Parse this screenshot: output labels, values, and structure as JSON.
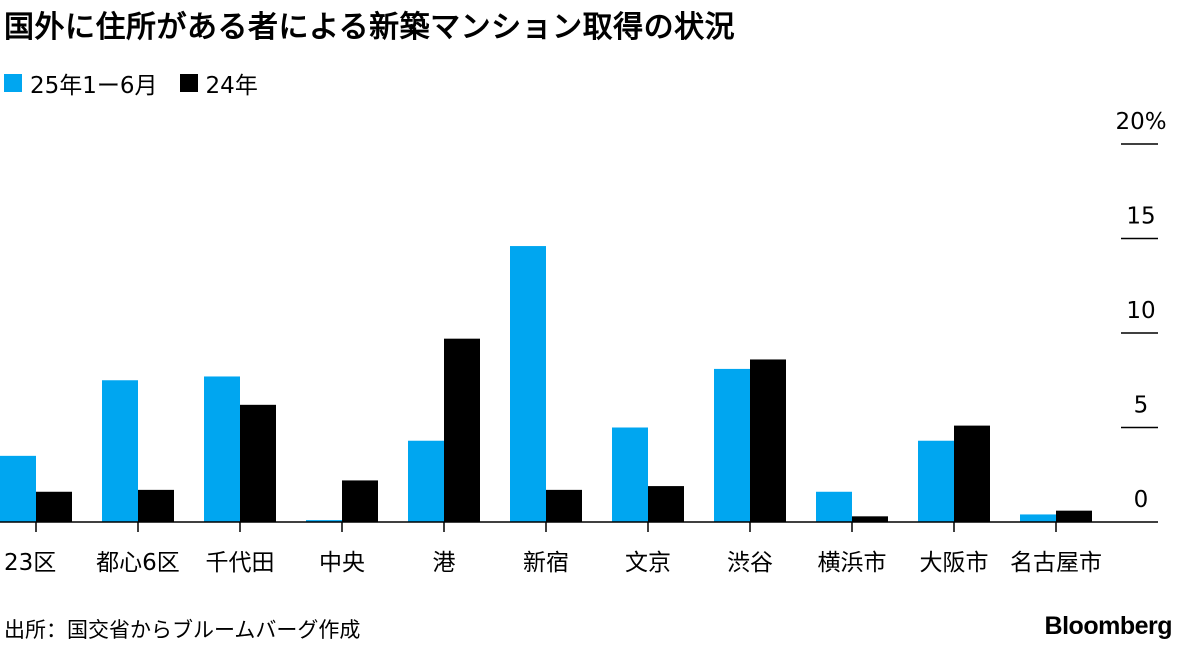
{
  "chart_data": {
    "type": "bar",
    "title": "国外に住所がある者による新築マンション取得の状況",
    "categories": [
      "23区",
      "都心6区",
      "千代田",
      "中央",
      "港",
      "新宿",
      "文京",
      "渋谷",
      "横浜市",
      "大阪市",
      "名古屋市"
    ],
    "series": [
      {
        "name": "25年1ー6月",
        "color": "#00A6F0",
        "values": [
          3.5,
          7.5,
          7.7,
          0.1,
          4.3,
          14.6,
          5.0,
          8.1,
          1.6,
          4.3,
          0.4
        ]
      },
      {
        "name": "24年",
        "color": "#000000",
        "values": [
          1.6,
          1.7,
          6.2,
          2.2,
          9.7,
          1.7,
          1.9,
          8.6,
          0.3,
          5.1,
          0.6
        ]
      }
    ],
    "yticks": [
      0,
      5,
      10,
      15,
      20
    ],
    "ytick_labels": [
      "0",
      "5",
      "10",
      "15",
      "20%"
    ],
    "ylim": [
      0,
      20
    ],
    "legend_position": "top-left",
    "y_axis_side": "right",
    "grid": false
  },
  "source": "出所：国交省からブルームバーグ作成",
  "brand": "Bloomberg"
}
